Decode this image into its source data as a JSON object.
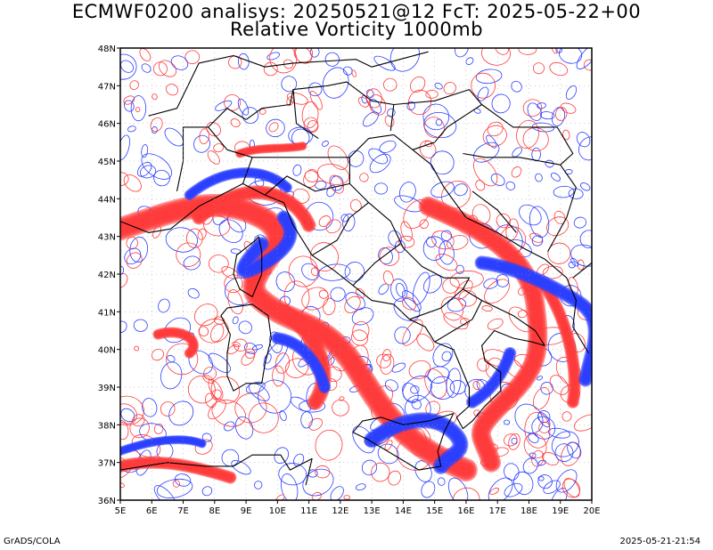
{
  "title_line1": "ECMWF0200 analisys: 20250521@12 FcT: 2025-05-22+00",
  "title_line2": "Relative Vorticity 1000mb",
  "footer_left": "GrADS/COLA",
  "footer_right": "2025-05-21-21:54",
  "map": {
    "lon_range": [
      5,
      20
    ],
    "lat_range": [
      36,
      48
    ],
    "lon_labels": [
      "5E",
      "6E",
      "7E",
      "8E",
      "9E",
      "10E",
      "11E",
      "12E",
      "13E",
      "14E",
      "15E",
      "16E",
      "17E",
      "18E",
      "19E",
      "20E"
    ],
    "lat_labels": [
      "36N",
      "37N",
      "38N",
      "39N",
      "40N",
      "41N",
      "42N",
      "43N",
      "44N",
      "45N",
      "46N",
      "47N",
      "48N"
    ],
    "positive_color": "#ff3b3b",
    "negative_color": "#2b3fff",
    "coastline_color": "#000000",
    "grid_color": "#999999"
  }
}
